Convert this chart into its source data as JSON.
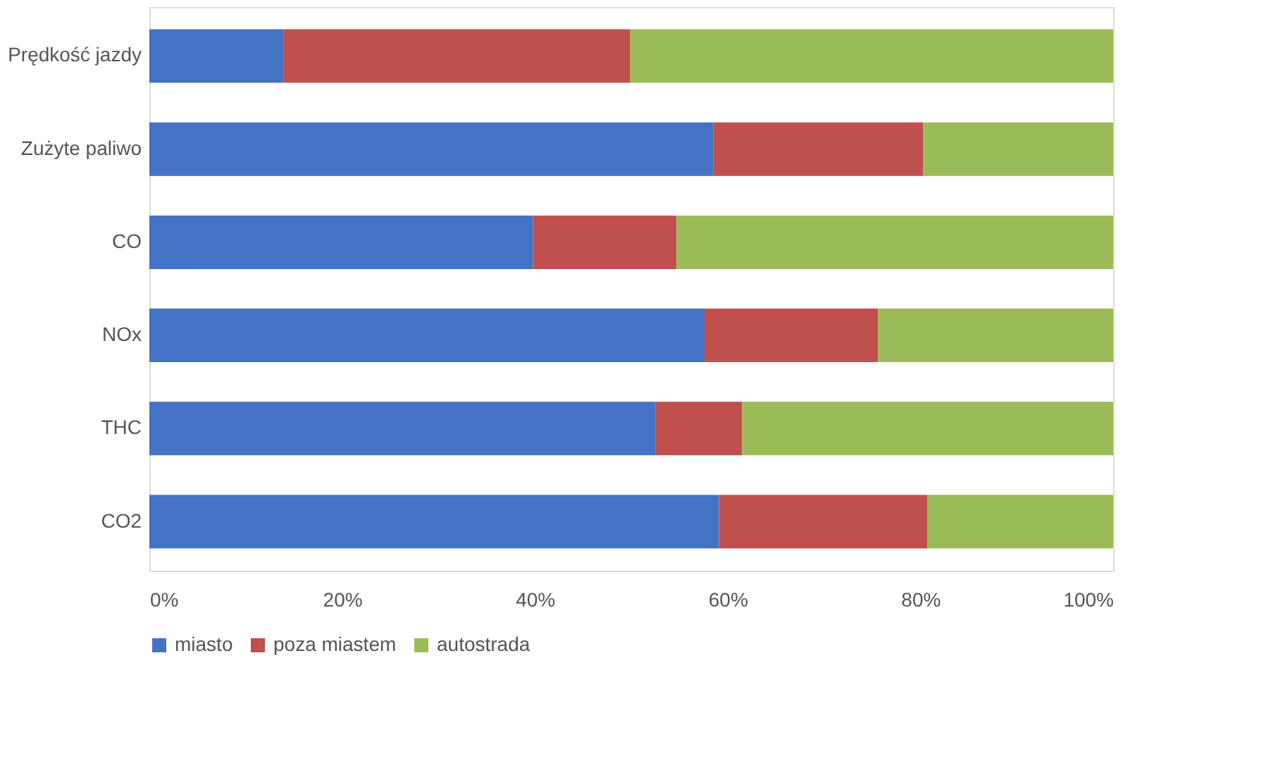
{
  "chart_data": {
    "type": "bar",
    "orientation": "horizontal",
    "stacked": true,
    "categories": [
      "Prędkość jazdy",
      "Zużyte paliwo",
      "CO",
      "NOx",
      "THC",
      "CO2"
    ],
    "series": [
      {
        "name": "miasto",
        "color": "#4472c4",
        "values": [
          13.9,
          58.5,
          39.8,
          57.6,
          52.5,
          59.1
        ]
      },
      {
        "name": "poza miastem",
        "color": "#c0504d",
        "values": [
          36.0,
          21.8,
          14.9,
          18.0,
          9.0,
          21.6
        ]
      },
      {
        "name": "autostrada",
        "color": "#9bbb59",
        "values": [
          50.1,
          19.7,
          45.3,
          24.4,
          38.5,
          19.3
        ]
      }
    ],
    "xlim": [
      0,
      100
    ],
    "xticks": [
      {
        "value": 0,
        "label": "0%"
      },
      {
        "value": 20,
        "label": "20%"
      },
      {
        "value": 40,
        "label": "40%"
      },
      {
        "value": 60,
        "label": "60%"
      },
      {
        "value": 80,
        "label": "80%"
      },
      {
        "value": 100,
        "label": "100%"
      }
    ],
    "grid": false,
    "legend": "bottom"
  }
}
